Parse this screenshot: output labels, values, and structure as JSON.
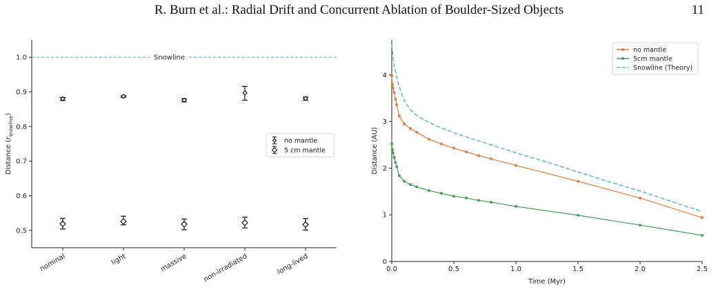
{
  "header": {
    "title": "R. Burn et al.: Radial Drift and Concurrent Ablation of Boulder-Sized Objects",
    "page_number": "11"
  },
  "chart_data": [
    {
      "type": "scatter",
      "categories": [
        "nominal",
        "light",
        "massive",
        "non-irradiated",
        "long-lived"
      ],
      "ylabel_main": "Distance (",
      "ylabel_var": "r",
      "ylabel_sub": "snowline",
      "ylabel_end": ")",
      "ylim": [
        0.45,
        1.05
      ],
      "yticks": [
        0.5,
        0.6,
        0.7,
        0.8,
        0.9,
        1.0
      ],
      "ytick_labels": [
        "0.5",
        "0.6",
        "0.7",
        "0.8",
        "0.9",
        "1.0"
      ],
      "reference_line": {
        "value": 1.0,
        "label": "Snowline",
        "color": "#5bb3d0"
      },
      "series": [
        {
          "name": "no mantle",
          "values": [
            0.88,
            0.887,
            0.876,
            0.897,
            0.881
          ],
          "err_low": [
            0.005,
            0.003,
            0.005,
            0.021,
            0.005
          ],
          "err_high": [
            0.004,
            0.002,
            0.004,
            0.019,
            0.004
          ]
        },
        {
          "name": "5 cm mantle",
          "values": [
            0.519,
            0.526,
            0.518,
            0.522,
            0.517
          ],
          "err_low": [
            0.015,
            0.01,
            0.016,
            0.015,
            0.016
          ],
          "err_high": [
            0.016,
            0.015,
            0.015,
            0.016,
            0.017
          ]
        }
      ],
      "legend": {
        "placement": "center-right"
      },
      "grid": false
    },
    {
      "type": "line",
      "xlabel": "Time (Myr)",
      "ylabel": "Distance (AU)",
      "xlim": [
        0.0,
        2.5
      ],
      "ylim": [
        0,
        4.75
      ],
      "xticks": [
        0.0,
        0.5,
        1.0,
        1.5,
        2.0,
        2.5
      ],
      "xtick_labels": [
        "0.0",
        "0.5",
        "1.0",
        "1.5",
        "2.0",
        "2.5"
      ],
      "yticks": [
        0,
        1,
        2,
        3,
        4
      ],
      "ytick_labels": [
        "0",
        "1",
        "2",
        "3",
        "4"
      ],
      "series": [
        {
          "name": "no mantle",
          "color": "#e07b45",
          "x": [
            0.0,
            0.005,
            0.01,
            0.02,
            0.03,
            0.04,
            0.06,
            0.1,
            0.15,
            0.2,
            0.3,
            0.4,
            0.5,
            0.6,
            0.7,
            0.8,
            1.0,
            1.5,
            2.0,
            2.5
          ],
          "y": [
            3.98,
            3.8,
            3.72,
            3.62,
            3.48,
            3.36,
            3.12,
            2.95,
            2.85,
            2.77,
            2.62,
            2.52,
            2.43,
            2.35,
            2.27,
            2.2,
            2.06,
            1.72,
            1.36,
            0.94
          ]
        },
        {
          "name": "5cm mantle",
          "color": "#4a9e5c",
          "x": [
            0.0,
            0.005,
            0.01,
            0.02,
            0.03,
            0.04,
            0.06,
            0.1,
            0.15,
            0.2,
            0.3,
            0.4,
            0.5,
            0.6,
            0.7,
            0.8,
            1.0,
            1.5,
            2.0,
            2.5
          ],
          "y": [
            2.52,
            2.4,
            2.33,
            2.23,
            2.12,
            2.03,
            1.84,
            1.72,
            1.65,
            1.6,
            1.52,
            1.46,
            1.4,
            1.36,
            1.31,
            1.27,
            1.18,
            0.99,
            0.78,
            0.56
          ]
        },
        {
          "name": "Snowline (Theory)",
          "color": "#5bb3d0",
          "dashed": true,
          "x": [
            0.0,
            0.01,
            0.02,
            0.04,
            0.06,
            0.1,
            0.15,
            0.2,
            0.3,
            0.4,
            0.5,
            0.6,
            0.8,
            1.0,
            1.25,
            1.5,
            1.75,
            2.0,
            2.25,
            2.5
          ],
          "y": [
            4.65,
            4.4,
            4.2,
            3.95,
            3.75,
            3.45,
            3.25,
            3.13,
            2.98,
            2.86,
            2.76,
            2.67,
            2.5,
            2.33,
            2.13,
            1.92,
            1.71,
            1.51,
            1.29,
            1.07
          ]
        }
      ],
      "legend": {
        "placement": "top-right"
      },
      "grid": false
    }
  ]
}
